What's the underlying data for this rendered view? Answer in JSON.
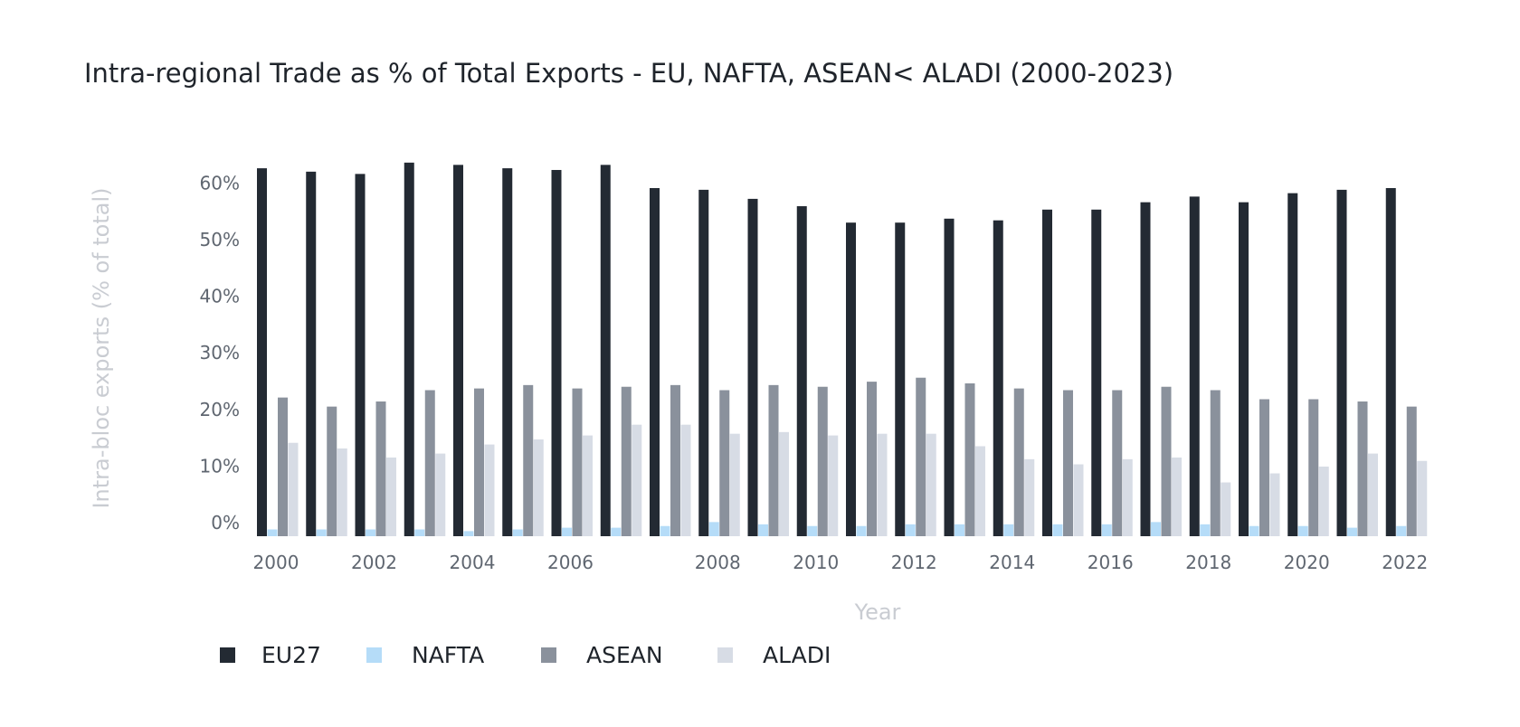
{
  "chart_data": {
    "type": "bar",
    "title": "Intra-regional Trade as % of Total Exports - EU, NAFTA, ASEAN< ALADI (2000-2023)",
    "xlabel": "Year",
    "ylabel": "Intra-bloc exports (% of total)",
    "ylim": [
      0,
      66
    ],
    "y_ticks": [
      "0%",
      "10%",
      "20%",
      "30%",
      "40%",
      "50%",
      "60%"
    ],
    "y_tick_values": [
      0,
      10,
      20,
      30,
      40,
      50,
      60
    ],
    "grid": false,
    "legend_position": "bottom-left",
    "categories": [
      "2000",
      "2001",
      "2002",
      "2003",
      "2004",
      "2005",
      "2006",
      "2007",
      "2008",
      "2009",
      "2010",
      "2011",
      "2012",
      "2013",
      "2014",
      "2015",
      "2016",
      "2017",
      "2018",
      "2019",
      "2020",
      "2021",
      "2022",
      "2023"
    ],
    "x_tick_labels": [
      "2000",
      "",
      "2002",
      "",
      "2004",
      "",
      "2006",
      "",
      "",
      "2008",
      "",
      "2010",
      "",
      "2012",
      "",
      "2014",
      "",
      "2016",
      "",
      "2018",
      "",
      "2020",
      "",
      "2022"
    ],
    "series": [
      {
        "name": "EU27",
        "color": "#232a33",
        "values": [
          65.0,
          64.4,
          64.0,
          66.0,
          65.6,
          65.0,
          64.7,
          65.6,
          61.5,
          61.2,
          59.6,
          58.3,
          55.4,
          55.4,
          56.1,
          55.8,
          57.7,
          57.7,
          59.0,
          60.0,
          59.0,
          60.6,
          61.2,
          61.5
        ]
      },
      {
        "name": "NAFTA",
        "color": "#b5dcf8",
        "values": [
          1.2,
          1.2,
          1.2,
          1.2,
          0.9,
          1.2,
          1.5,
          1.5,
          1.8,
          2.5,
          2.1,
          1.8,
          1.8,
          2.1,
          2.1,
          2.1,
          2.1,
          2.1,
          2.5,
          2.1,
          1.8,
          1.8,
          1.5,
          1.8
        ]
      },
      {
        "name": "ASEAN",
        "color": "#8a919c",
        "values": [
          24.5,
          22.9,
          23.8,
          25.8,
          26.1,
          26.7,
          26.1,
          26.4,
          26.7,
          25.8,
          26.7,
          26.4,
          27.3,
          28.0,
          27.0,
          26.1,
          25.8,
          25.8,
          26.4,
          25.8,
          24.2,
          24.2,
          23.8,
          22.9
        ]
      },
      {
        "name": "ALADI",
        "color": "#d7dce5",
        "values": [
          16.5,
          15.5,
          13.9,
          14.6,
          16.2,
          17.1,
          17.8,
          19.7,
          19.7,
          18.1,
          18.4,
          17.8,
          18.1,
          18.1,
          15.9,
          13.6,
          12.7,
          13.6,
          13.9,
          9.5,
          11.1,
          12.3,
          14.6,
          13.3
        ]
      }
    ]
  }
}
